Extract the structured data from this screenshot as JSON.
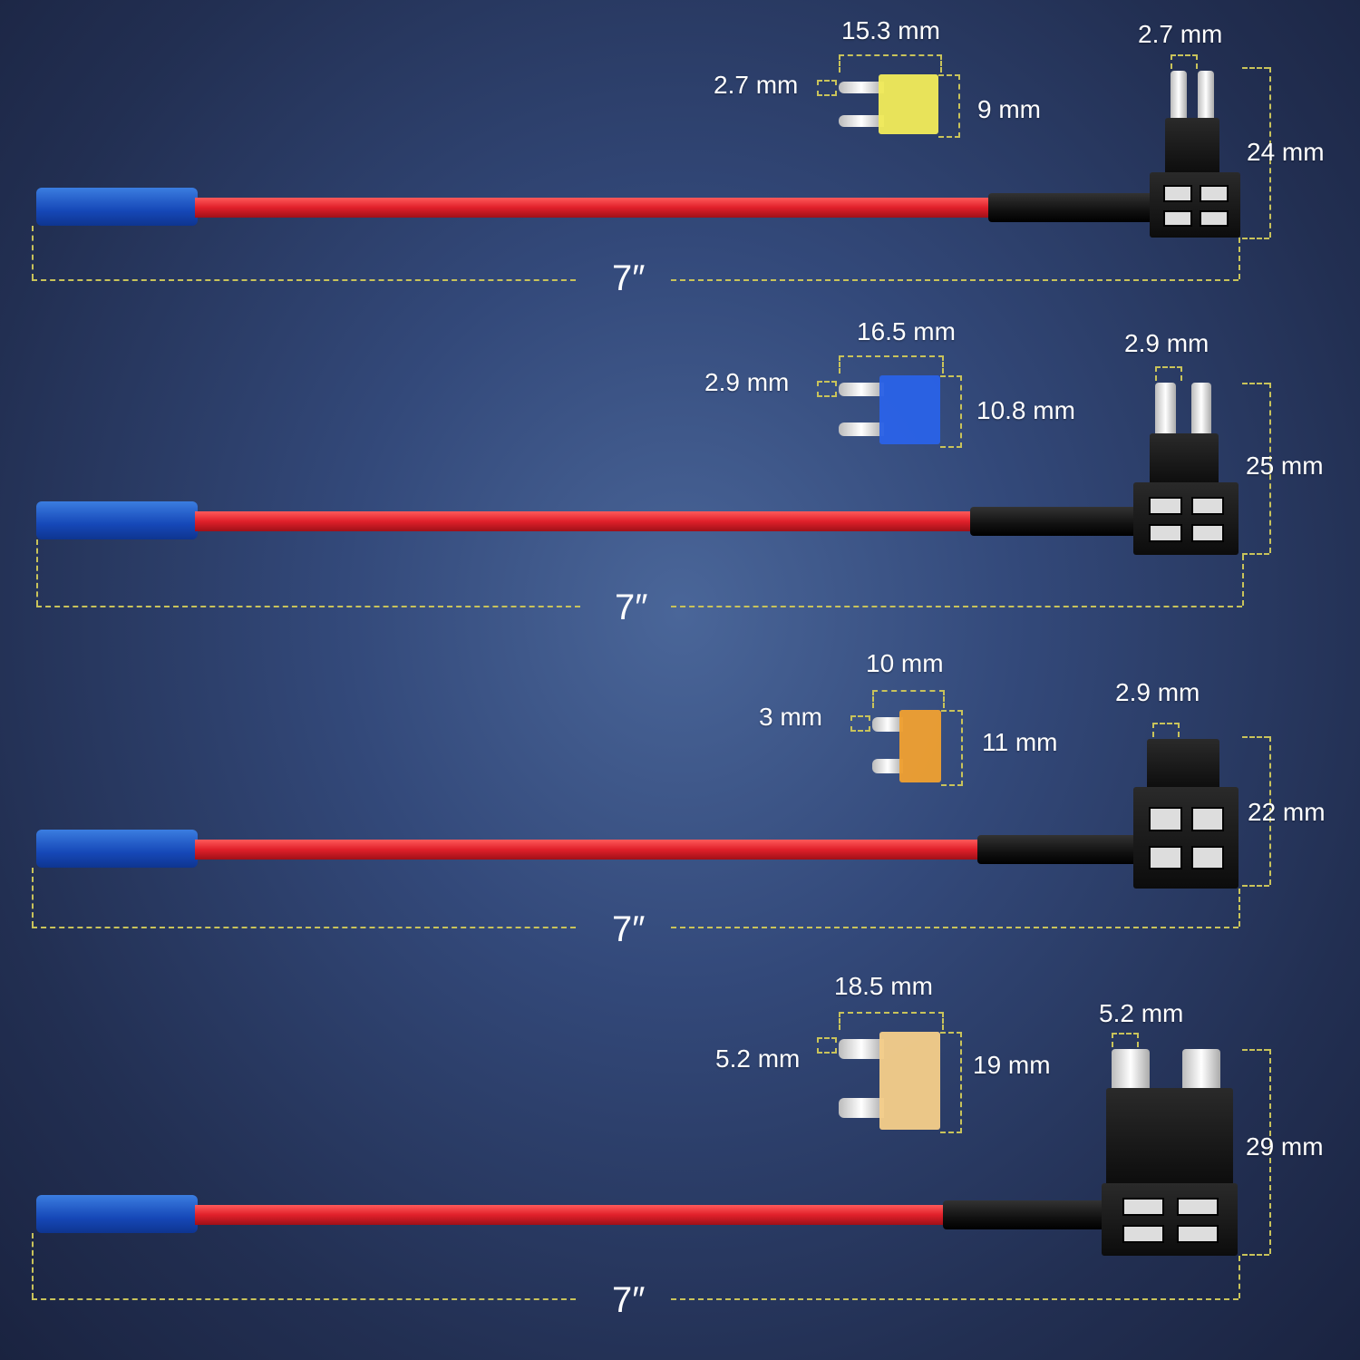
{
  "rows": [
    {
      "fuse_width": "15.3 mm",
      "blade_width": "2.7 mm",
      "fuse_height": "9 mm",
      "tap_blade_width": "2.7 mm",
      "tap_height": "24  mm",
      "length": "7″",
      "fuse_color": "#f2ec5a"
    },
    {
      "fuse_width": "16.5 mm",
      "blade_width": "2.9 mm",
      "fuse_height": "10.8 mm",
      "tap_blade_width": "2.9 mm",
      "tap_height": "25 mm",
      "length": "7″",
      "fuse_color": "#2a62e8"
    },
    {
      "fuse_width": "10 mm",
      "blade_width": "3 mm",
      "fuse_height": "11 mm",
      "tap_blade_width": "2.9 mm",
      "tap_height": "22 mm",
      "length": "7″",
      "fuse_color": "#f0a030"
    },
    {
      "fuse_width": "18.5 mm",
      "blade_width": "5.2 mm",
      "fuse_height": "19 mm",
      "tap_blade_width": "5.2 mm",
      "tap_height": "29 mm",
      "length": "7″",
      "fuse_color": "#f5cf8a"
    }
  ]
}
